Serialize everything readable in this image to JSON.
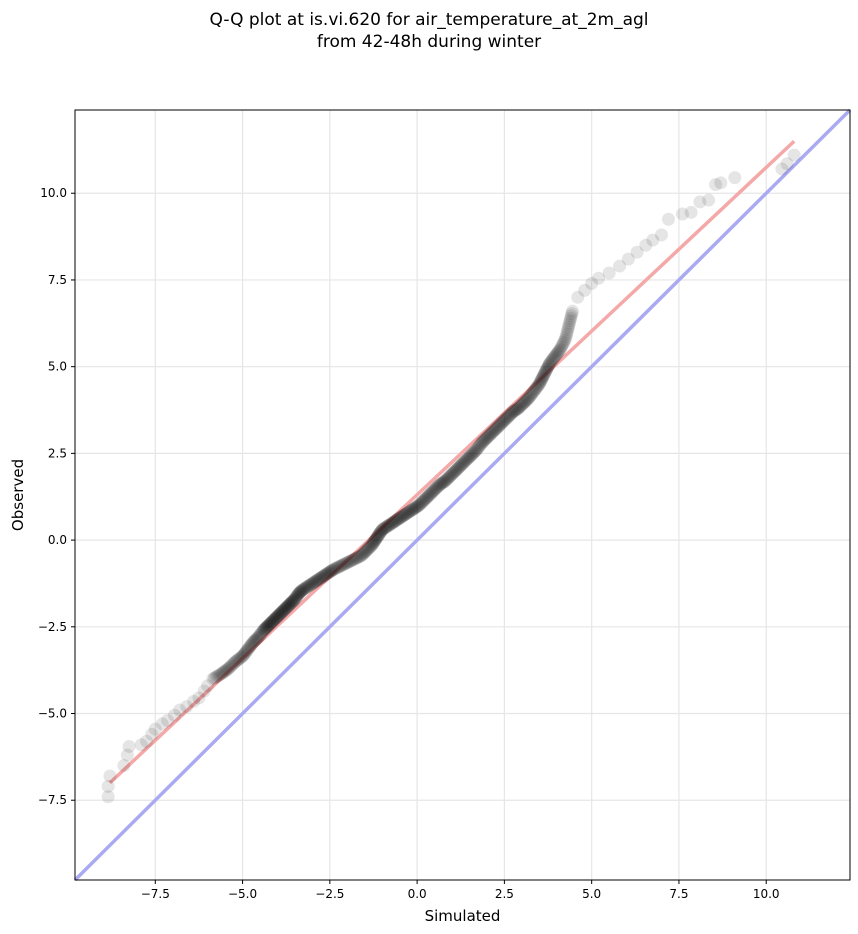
{
  "chart_data": {
    "type": "scatter",
    "title": "Q-Q plot at is.vi.620 for air_temperature_at_2m_agl",
    "subtitle": "from 42-48h during winter",
    "xlabel": "Simulated",
    "ylabel": "Observed",
    "xlim": [
      -9.8,
      12.4
    ],
    "ylim": [
      -9.8,
      12.4
    ],
    "xticks": [
      -7.5,
      -5.0,
      -2.5,
      0.0,
      2.5,
      5.0,
      7.5,
      10.0
    ],
    "xtick_labels": [
      "−7.5",
      "−5.0",
      "−2.5",
      "0.0",
      "2.5",
      "5.0",
      "7.5",
      "10.0"
    ],
    "yticks": [
      -7.5,
      -5.0,
      -2.5,
      0.0,
      2.5,
      5.0,
      7.5,
      10.0
    ],
    "ytick_labels": [
      "−7.5",
      "−5.0",
      "−2.5",
      "0.0",
      "2.5",
      "5.0",
      "7.5",
      "10.0"
    ],
    "grid": true,
    "identity_line": {
      "color": "#aaaaf2",
      "from": [
        -9.8,
        -9.8
      ],
      "to": [
        12.4,
        12.4
      ]
    },
    "fit_line": {
      "color": "#f4a8a8",
      "from": [
        -8.8,
        -7.0
      ],
      "to": [
        10.8,
        11.5
      ]
    },
    "point_color": "#000000",
    "points": [
      [
        -8.85,
        -7.4
      ],
      [
        -8.85,
        -7.1
      ],
      [
        -8.8,
        -6.8
      ],
      [
        -8.4,
        -6.5
      ],
      [
        -8.3,
        -6.2
      ],
      [
        -8.25,
        -5.95
      ],
      [
        -7.9,
        -5.9
      ],
      [
        -7.75,
        -5.8
      ],
      [
        -7.6,
        -5.6
      ],
      [
        -7.5,
        -5.45
      ],
      [
        -7.3,
        -5.3
      ],
      [
        -7.15,
        -5.2
      ],
      [
        -6.95,
        -5.05
      ],
      [
        -6.8,
        -4.9
      ],
      [
        -6.6,
        -4.8
      ],
      [
        -6.4,
        -4.65
      ],
      [
        -6.25,
        -4.55
      ],
      [
        -6.1,
        -4.35
      ],
      [
        -6.0,
        -4.2
      ],
      [
        -5.85,
        -4.0
      ],
      [
        -5.6,
        -3.85
      ],
      [
        -5.4,
        -3.7
      ],
      [
        -5.2,
        -3.5
      ],
      [
        -5.0,
        -3.35
      ],
      [
        -4.85,
        -3.15
      ],
      [
        -4.7,
        -2.95
      ],
      [
        -4.55,
        -2.8
      ],
      [
        -4.4,
        -2.6
      ],
      [
        -4.3,
        -2.5
      ],
      [
        -4.2,
        -2.4
      ],
      [
        -4.1,
        -2.3
      ],
      [
        -4.0,
        -2.2
      ],
      [
        -3.9,
        -2.1
      ],
      [
        -3.8,
        -2.0
      ],
      [
        -3.7,
        -1.9
      ],
      [
        -3.6,
        -1.8
      ],
      [
        -3.5,
        -1.7
      ],
      [
        -3.4,
        -1.55
      ],
      [
        -3.3,
        -1.45
      ],
      [
        -3.15,
        -1.35
      ],
      [
        -3.0,
        -1.25
      ],
      [
        -2.85,
        -1.15
      ],
      [
        -2.7,
        -1.05
      ],
      [
        -2.55,
        -0.95
      ],
      [
        -2.4,
        -0.85
      ],
      [
        -2.2,
        -0.75
      ],
      [
        -2.0,
        -0.65
      ],
      [
        -1.8,
        -0.55
      ],
      [
        -1.6,
        -0.45
      ],
      [
        -1.45,
        -0.3
      ],
      [
        -1.3,
        -0.15
      ],
      [
        -1.2,
        0.0
      ],
      [
        -1.1,
        0.15
      ],
      [
        -1.0,
        0.3
      ],
      [
        -0.85,
        0.4
      ],
      [
        -0.7,
        0.5
      ],
      [
        -0.55,
        0.6
      ],
      [
        -0.4,
        0.7
      ],
      [
        -0.25,
        0.8
      ],
      [
        -0.1,
        0.9
      ],
      [
        0.05,
        1.0
      ],
      [
        0.2,
        1.15
      ],
      [
        0.35,
        1.3
      ],
      [
        0.5,
        1.45
      ],
      [
        0.65,
        1.6
      ],
      [
        0.8,
        1.7
      ],
      [
        0.95,
        1.85
      ],
      [
        1.1,
        2.0
      ],
      [
        1.25,
        2.15
      ],
      [
        1.4,
        2.3
      ],
      [
        1.55,
        2.45
      ],
      [
        1.7,
        2.6
      ],
      [
        1.85,
        2.8
      ],
      [
        2.0,
        2.95
      ],
      [
        2.15,
        3.1
      ],
      [
        2.3,
        3.25
      ],
      [
        2.45,
        3.4
      ],
      [
        2.6,
        3.55
      ],
      [
        2.75,
        3.7
      ],
      [
        2.9,
        3.8
      ],
      [
        3.05,
        3.95
      ],
      [
        3.2,
        4.1
      ],
      [
        3.35,
        4.3
      ],
      [
        3.5,
        4.5
      ],
      [
        3.6,
        4.7
      ],
      [
        3.7,
        4.9
      ],
      [
        3.8,
        5.1
      ],
      [
        3.95,
        5.3
      ],
      [
        4.1,
        5.5
      ],
      [
        4.25,
        5.8
      ],
      [
        4.35,
        6.2
      ],
      [
        4.45,
        6.6
      ],
      [
        4.6,
        7.0
      ],
      [
        4.8,
        7.2
      ],
      [
        5.0,
        7.4
      ],
      [
        5.2,
        7.55
      ],
      [
        5.5,
        7.7
      ],
      [
        5.8,
        7.9
      ],
      [
        6.05,
        8.1
      ],
      [
        6.3,
        8.3
      ],
      [
        6.55,
        8.5
      ],
      [
        6.75,
        8.65
      ],
      [
        7.0,
        8.8
      ],
      [
        7.2,
        9.25
      ],
      [
        7.6,
        9.4
      ],
      [
        7.85,
        9.45
      ],
      [
        8.1,
        9.75
      ],
      [
        8.35,
        9.8
      ],
      [
        8.55,
        10.25
      ],
      [
        8.7,
        10.3
      ],
      [
        9.1,
        10.45
      ],
      [
        10.45,
        10.7
      ],
      [
        10.6,
        10.85
      ],
      [
        10.8,
        11.1
      ]
    ]
  }
}
